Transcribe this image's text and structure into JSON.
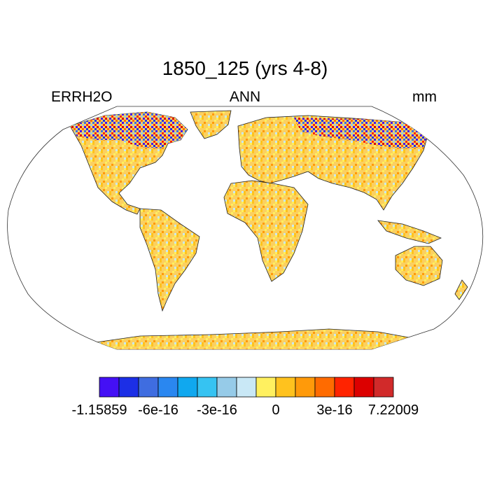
{
  "title": "1850_125 (yrs 4-8)",
  "left_label": "ERRH2O",
  "center_label": "ANN",
  "right_label": "mm",
  "colorbar": {
    "colors": [
      "#4410f5",
      "#1c2fe6",
      "#3f6de0",
      "#2a87f0",
      "#10a8ef",
      "#36c3f2",
      "#96cbe8",
      "#c9e8f6",
      "#fff05f",
      "#ffc21e",
      "#ff9a0a",
      "#ff6b00",
      "#ff2300",
      "#dc0000",
      "#d12a2a"
    ],
    "labels": [
      "-1.15859",
      "-6e-16",
      "-3e-16",
      "0",
      "3e-16",
      "7.22009"
    ]
  },
  "map": {
    "projection": "robinson",
    "land_base_color": "#fbd060"
  }
}
